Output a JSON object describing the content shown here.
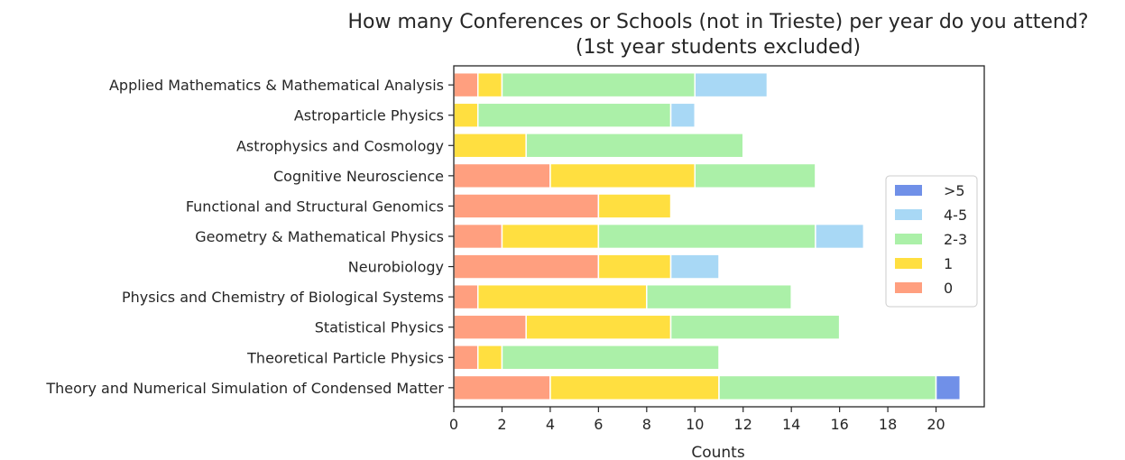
{
  "chart_data": {
    "type": "bar",
    "orientation": "horizontal",
    "stacked": true,
    "title": "How many Conferences or Schools (not in Trieste) per year do you attend?",
    "subtitle": "(1st year students excluded)",
    "xlabel": "Counts",
    "ylabel": "",
    "xlim": [
      0,
      22
    ],
    "xticks": [
      "0",
      "2",
      "4",
      "6",
      "8",
      "10",
      "12",
      "14",
      "16",
      "18",
      "20"
    ],
    "grid": false,
    "legend_position": "right",
    "categories": [
      "Applied Mathematics & Mathematical Analysis",
      "Astroparticle Physics",
      "Astrophysics and Cosmology",
      "Cognitive Neuroscience",
      "Functional and Structural Genomics",
      "Geometry & Mathematical Physics",
      "Neurobiology",
      "Physics and Chemistry of Biological Systems",
      "Statistical Physics",
      "Theoretical Particle Physics",
      "Theory and Numerical Simulation of Condensed Matter"
    ],
    "series": [
      {
        "name": "0",
        "color": "#FF9F7F",
        "values": [
          1,
          0,
          0,
          4,
          6,
          2,
          6,
          1,
          3,
          1,
          4
        ]
      },
      {
        "name": "1",
        "color": "#FFDF40",
        "values": [
          1,
          1,
          3,
          6,
          3,
          4,
          3,
          7,
          6,
          1,
          7
        ]
      },
      {
        "name": "2-3",
        "color": "#ABF0A8",
        "values": [
          8,
          8,
          9,
          5,
          0,
          9,
          0,
          6,
          7,
          9,
          9
        ]
      },
      {
        "name": "4-5",
        "color": "#A8D8F5",
        "values": [
          3,
          1,
          0,
          0,
          0,
          2,
          2,
          0,
          0,
          0,
          0
        ]
      },
      {
        "name": ">5",
        "color": "#7090E8",
        "values": [
          0,
          0,
          0,
          0,
          0,
          0,
          0,
          0,
          0,
          0,
          1
        ]
      }
    ],
    "legend_order": [
      ">5",
      "4-5",
      "2-3",
      "1",
      "0"
    ]
  }
}
